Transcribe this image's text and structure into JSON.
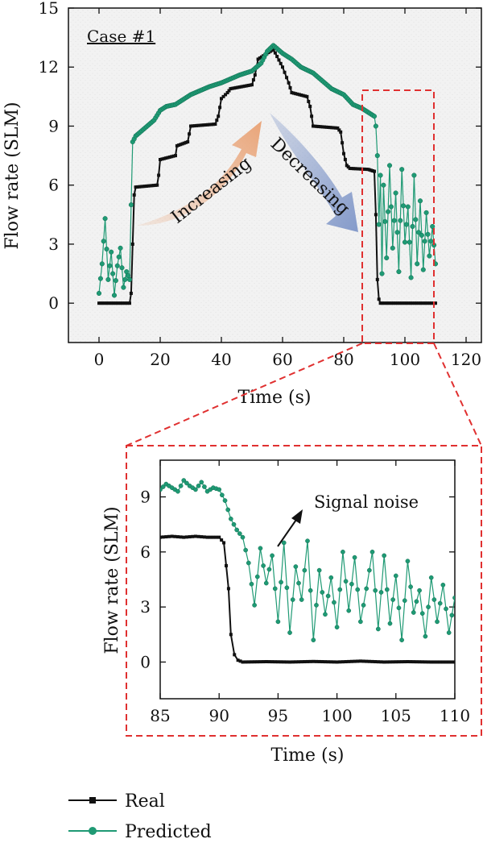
{
  "chart_data": [
    {
      "type": "line",
      "panel": "main",
      "annotation_case": "Case #1",
      "annotation_increasing": "Increasing",
      "annotation_decreasing": "Decreasing",
      "xlabel": "Time (s)",
      "ylabel": "Flow rate (SLM)",
      "xlim": [
        -10,
        125
      ],
      "ylim": [
        -2,
        15
      ],
      "xticks": [
        0,
        20,
        40,
        60,
        80,
        100,
        120
      ],
      "yticks": [
        0,
        3,
        6,
        9,
        12,
        15
      ],
      "grid": false,
      "colors": {
        "real": "#111111",
        "predicted": "#1f9a74",
        "increasing": "#e9a173",
        "decreasing": "#7f96c8",
        "zoom_box": "#e03030"
      },
      "series": [
        {
          "name": "Real",
          "x": [
            0,
            10,
            10.5,
            11.5,
            12,
            19,
            19.5,
            20,
            25,
            25.5,
            29,
            29.5,
            30,
            38,
            39,
            40,
            42,
            43,
            50,
            51,
            52,
            56,
            57,
            60,
            62,
            63,
            68,
            69,
            70,
            78,
            79,
            80,
            81,
            82,
            88,
            89,
            90,
            90.5,
            91,
            91.5,
            92,
            100,
            105,
            110
          ],
          "y": [
            0,
            0,
            0.5,
            5.5,
            5.9,
            6.0,
            6.5,
            7.3,
            7.5,
            8.0,
            8.2,
            8.6,
            9.0,
            9.1,
            9.5,
            10.4,
            10.7,
            10.9,
            11.1,
            11.6,
            12.4,
            12.8,
            12.9,
            12.0,
            11.2,
            10.7,
            10.5,
            10.0,
            9.0,
            8.9,
            8.7,
            7.6,
            7.0,
            6.85,
            6.8,
            6.75,
            6.7,
            4.5,
            1.2,
            0.2,
            0.0,
            0.0,
            0.0,
            0.0
          ]
        },
        {
          "name": "Predicted",
          "x": [
            0,
            1,
            2,
            3,
            4,
            5,
            6,
            7,
            8,
            9,
            10,
            10.5,
            11,
            12,
            15,
            18,
            20,
            22,
            25,
            28,
            30,
            33,
            36,
            40,
            43,
            46,
            50,
            53,
            55,
            57,
            60,
            63,
            66,
            70,
            73,
            76,
            80,
            83,
            86,
            88,
            89,
            90,
            90.5,
            91,
            91.5,
            92,
            92.5,
            93,
            94,
            95,
            96,
            97,
            98,
            99,
            100,
            101,
            102,
            103,
            104,
            105,
            106,
            107,
            108,
            109,
            110
          ],
          "y": [
            0.5,
            2.0,
            4.3,
            1.2,
            2.6,
            0.4,
            1.9,
            2.8,
            0.8,
            1.6,
            1.2,
            5.0,
            8.2,
            8.5,
            8.9,
            9.3,
            9.8,
            10.0,
            10.1,
            10.4,
            10.6,
            10.8,
            11.0,
            11.2,
            11.4,
            11.6,
            11.8,
            12.2,
            12.8,
            13.1,
            12.7,
            12.4,
            12.0,
            11.7,
            11.3,
            10.9,
            10.6,
            10.1,
            9.9,
            9.7,
            9.6,
            9.5,
            9.0,
            7.5,
            4.0,
            6.5,
            1.5,
            6.0,
            2.3,
            7.0,
            2.8,
            5.6,
            1.6,
            6.8,
            3.1,
            4.9,
            1.3,
            6.5,
            2.0,
            5.2,
            1.7,
            4.6,
            2.4,
            3.9,
            2.0
          ]
        }
      ]
    },
    {
      "type": "line",
      "panel": "inset",
      "annotation_noise": "Signal noise",
      "xlabel": "Time (s)",
      "ylabel": "Flow rate (SLM)",
      "xlim": [
        85,
        110
      ],
      "ylim": [
        -2,
        11
      ],
      "xticks": [
        85,
        90,
        95,
        100,
        105,
        110
      ],
      "yticks": [
        0,
        3,
        6,
        9
      ],
      "grid": false,
      "series": [
        {
          "name": "Real",
          "x": [
            85,
            86,
            87,
            88,
            89,
            90,
            90.4,
            90.8,
            91.0,
            91.3,
            91.6,
            92,
            94,
            96,
            98,
            100,
            102,
            104,
            106,
            108,
            110
          ],
          "y": [
            6.8,
            6.85,
            6.8,
            6.85,
            6.8,
            6.8,
            6.5,
            4.0,
            1.5,
            0.4,
            0.1,
            0.0,
            0.02,
            0.0,
            0.03,
            0.0,
            0.05,
            0.0,
            0.02,
            0.0,
            0.0
          ]
        },
        {
          "name": "Predicted",
          "x": [
            85,
            85.5,
            86,
            86.5,
            87,
            87.5,
            88,
            88.5,
            89,
            89.5,
            90,
            90.5,
            91,
            91.5,
            92,
            92.5,
            93,
            93.5,
            94,
            94.5,
            95,
            95.5,
            96,
            96.5,
            97,
            97.5,
            98,
            98.5,
            99,
            99.5,
            100,
            100.5,
            101,
            101.5,
            102,
            102.5,
            103,
            103.5,
            104,
            104.5,
            105,
            105.5,
            106,
            106.5,
            107,
            107.5,
            108,
            108.5,
            109,
            109.5,
            110
          ],
          "y": [
            9.4,
            9.7,
            9.5,
            9.3,
            9.9,
            9.6,
            9.4,
            9.8,
            9.3,
            9.5,
            9.4,
            8.8,
            7.8,
            7.2,
            6.8,
            5.4,
            3.1,
            6.2,
            4.3,
            5.8,
            2.2,
            6.5,
            1.6,
            5.2,
            3.4,
            6.6,
            1.2,
            5.0,
            2.6,
            4.6,
            1.9,
            6.0,
            2.8,
            5.7,
            2.2,
            4.0,
            6.0,
            1.8,
            5.8,
            2.1,
            4.7,
            1.2,
            5.5,
            2.7,
            3.9,
            1.4,
            4.6,
            2.2,
            4.2,
            1.6,
            3.5
          ]
        }
      ]
    }
  ],
  "legend": {
    "real": "Real",
    "predicted": "Predicted"
  }
}
